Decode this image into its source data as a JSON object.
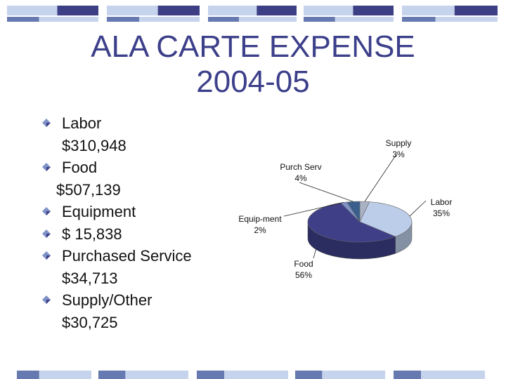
{
  "slide": {
    "title_line1": "ALA CARTE EXPENSE",
    "title_line2": "2004-05"
  },
  "bullets": [
    {
      "label": "Labor",
      "value": "$310,948"
    },
    {
      "label": "Food",
      "value": "$507,139"
    },
    {
      "label": "Equipment",
      "value": "$ 15,838"
    },
    {
      "label": "Purchased Service",
      "value": "$34,713"
    },
    {
      "label": "Supply/Other",
      "value": "$30,725"
    }
  ],
  "colors": {
    "title": "#3c3f8a",
    "band_light": "#c5d3ec",
    "band_dark": "#3d3f86",
    "band_mid": "#6679b0",
    "labor": "#bccde9",
    "food": "#3e3f87",
    "equipment": "#7f92c7",
    "purch_serv": "#3a5f8c",
    "supply": "#a9b1c4"
  },
  "chart_data": {
    "type": "pie",
    "title": "",
    "slices": [
      {
        "label": "Labor",
        "percent": 35,
        "pct_label": "35%",
        "color": "#bccde9"
      },
      {
        "label": "Food",
        "percent": 56,
        "pct_label": "56%",
        "color": "#3e3f87"
      },
      {
        "label": "Equip-ment",
        "percent": 2,
        "pct_label": "2%",
        "color": "#7f92c7"
      },
      {
        "label": "Purch Serv",
        "percent": 4,
        "pct_label": "4%",
        "color": "#3a5f8c"
      },
      {
        "label": "Supply",
        "percent": 3,
        "pct_label": "3%",
        "color": "#a9b1c4"
      }
    ],
    "three_d": true,
    "legend": "none"
  }
}
